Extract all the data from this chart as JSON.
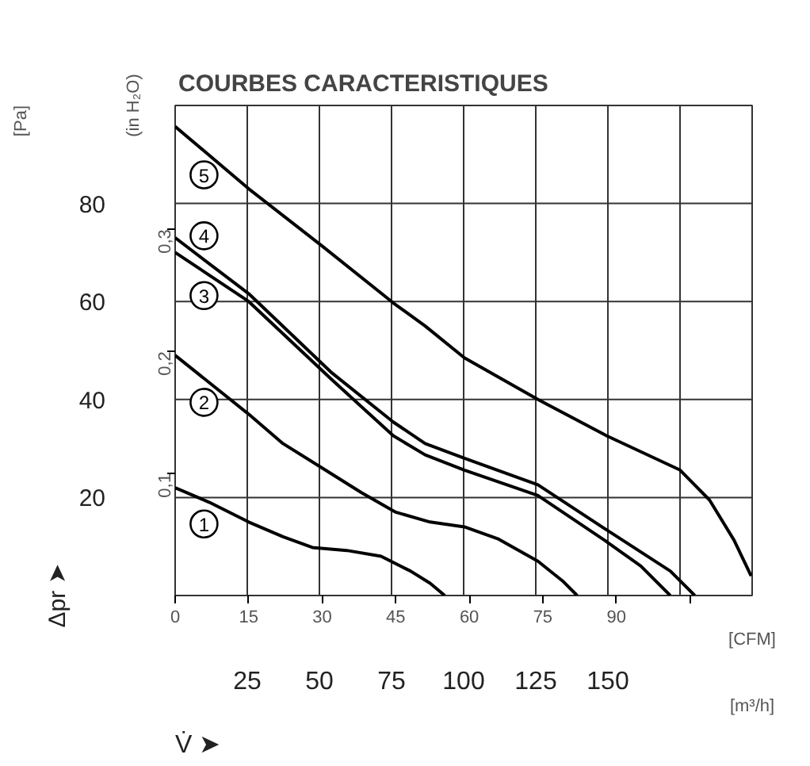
{
  "chart_data": {
    "type": "line",
    "title": "COURBES CARACTERISTIQUES",
    "xlabel": "[CFM]",
    "x2label": "[m³/h]",
    "ylabel": "Δpr ➤",
    "y2label": "(in H₂O)",
    "annotations": [
      "[Pa]",
      "V̇ ➤"
    ],
    "xlim": [
      0,
      117.7
    ],
    "xticks": [
      0,
      15,
      30,
      45,
      60,
      75,
      90,
      {
        "value": 105,
        "label": null
      }
    ],
    "x2lim": [
      0,
      200
    ],
    "x2ticks": [
      25,
      50,
      75,
      100,
      125,
      150,
      {
        "value": 175,
        "label": null
      }
    ],
    "ylim": [
      0,
      100
    ],
    "yticks": [
      20,
      40,
      60,
      80
    ],
    "y2lim": [
      0,
      0.4015
    ],
    "y2ticks": [
      {
        "value": 0.1,
        "label": "0,1"
      },
      {
        "value": 0.2,
        "label": "0,2"
      },
      {
        "value": 0.3,
        "label": "0,3"
      }
    ],
    "grid": true,
    "line_style": "solid",
    "marker": "none",
    "series": [
      {
        "name": "1",
        "color": "#000000",
        "x": [
          0,
          7,
          15,
          22,
          28,
          35,
          42,
          48,
          52,
          55
        ],
        "values": [
          22,
          19,
          15,
          12,
          9.8,
          9.2,
          8,
          5,
          2.5,
          0
        ]
      },
      {
        "name": "2",
        "color": "#000000",
        "x": [
          0,
          5,
          15,
          22,
          30,
          38,
          45,
          52,
          59,
          66,
          74,
          79,
          82
        ],
        "values": [
          49,
          45,
          37,
          31,
          26,
          21,
          17,
          15,
          14,
          11.5,
          7,
          3,
          0
        ]
      },
      {
        "name": "3",
        "color": "#000000",
        "x": [
          0,
          15,
          32,
          44.5,
          51,
          59,
          74,
          88,
          95,
          101
        ],
        "values": [
          70,
          60,
          44,
          32.6,
          28.7,
          25.6,
          20.4,
          11,
          6,
          0
        ]
      },
      {
        "name": "4",
        "color": "#000000",
        "x": [
          0,
          15,
          32,
          44.5,
          51,
          59,
          74,
          88,
          101,
          106
        ],
        "values": [
          73,
          61.6,
          45.4,
          35.4,
          31,
          28,
          22.6,
          13.4,
          5,
          0
        ]
      },
      {
        "name": "5",
        "color": "#000000",
        "x": [
          0,
          15,
          30,
          44.5,
          51,
          59,
          74,
          88,
          103,
          109,
          114,
          117.5
        ],
        "values": [
          95.7,
          83,
          71.3,
          59.7,
          55,
          48.5,
          40,
          32.6,
          25.6,
          19.5,
          11.3,
          4
        ]
      }
    ]
  }
}
